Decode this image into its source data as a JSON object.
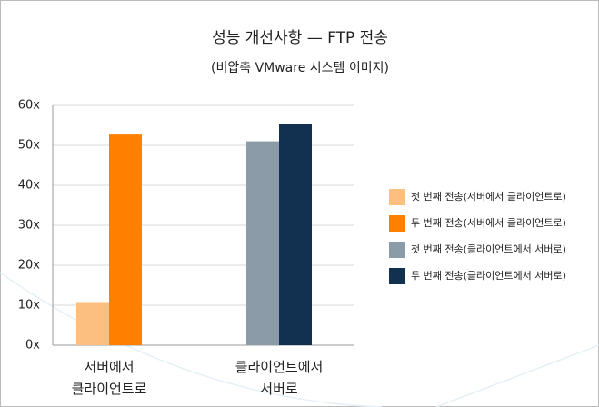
{
  "chart_data": {
    "type": "bar",
    "title": "성능 개선사항 — FTP 전송",
    "subtitle": "(비압축 VMware 시스템 이미지)",
    "categories": [
      "서버에서\n클라이언트로",
      "클라이언트에서\n서버로"
    ],
    "series": [
      {
        "name": "첫 번째 전송(서버에서 클라이언트로)",
        "color": "#fdbf80",
        "values": [
          10.8,
          null
        ]
      },
      {
        "name": "두 번째 전송(서버에서 클라이언트로)",
        "color": "#ff8000",
        "values": [
          52.7,
          null
        ]
      },
      {
        "name": "첫 번째 전송(클라이언트에서 서버로)",
        "color": "#8c9ba8",
        "values": [
          null,
          51
        ]
      },
      {
        "name": "두 번째 전송(클라이언트에서 서버로)",
        "color": "#12304f",
        "values": [
          null,
          55.3
        ]
      }
    ],
    "ylim": [
      0,
      60
    ],
    "yticks": [
      {
        "value": 0,
        "label": "0x"
      },
      {
        "value": 10,
        "label": "10x"
      },
      {
        "value": 20,
        "label": "20x"
      },
      {
        "value": 30,
        "label": "30x"
      },
      {
        "value": 40,
        "label": "40x"
      },
      {
        "value": 50,
        "label": "50x"
      },
      {
        "value": 60,
        "label": "60x"
      }
    ],
    "grid": true,
    "legend": "right"
  }
}
